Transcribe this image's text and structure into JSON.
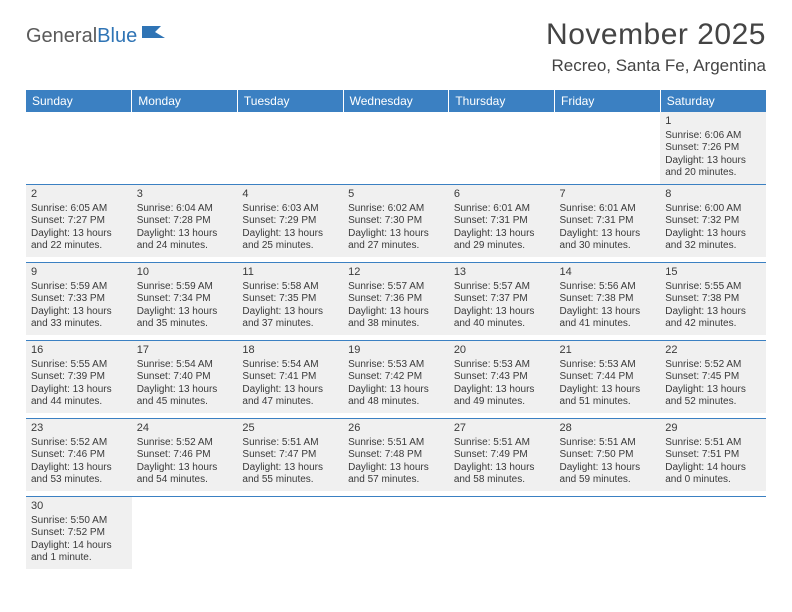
{
  "logo": {
    "text1": "General",
    "text2": "Blue"
  },
  "title": "November 2025",
  "location": "Recreo, Santa Fe, Argentina",
  "colors": {
    "header_bg": "#3b80c2",
    "cell_fill": "#f0f0f0",
    "rule": "#3b80c2",
    "text": "#3a3a3a"
  },
  "day_headers": [
    "Sunday",
    "Monday",
    "Tuesday",
    "Wednesday",
    "Thursday",
    "Friday",
    "Saturday"
  ],
  "weeks": [
    [
      null,
      null,
      null,
      null,
      null,
      null,
      {
        "n": "1",
        "sr": "Sunrise: 6:06 AM",
        "ss": "Sunset: 7:26 PM",
        "dl": "Daylight: 13 hours and 20 minutes."
      }
    ],
    [
      {
        "n": "2",
        "sr": "Sunrise: 6:05 AM",
        "ss": "Sunset: 7:27 PM",
        "dl": "Daylight: 13 hours and 22 minutes."
      },
      {
        "n": "3",
        "sr": "Sunrise: 6:04 AM",
        "ss": "Sunset: 7:28 PM",
        "dl": "Daylight: 13 hours and 24 minutes."
      },
      {
        "n": "4",
        "sr": "Sunrise: 6:03 AM",
        "ss": "Sunset: 7:29 PM",
        "dl": "Daylight: 13 hours and 25 minutes."
      },
      {
        "n": "5",
        "sr": "Sunrise: 6:02 AM",
        "ss": "Sunset: 7:30 PM",
        "dl": "Daylight: 13 hours and 27 minutes."
      },
      {
        "n": "6",
        "sr": "Sunrise: 6:01 AM",
        "ss": "Sunset: 7:31 PM",
        "dl": "Daylight: 13 hours and 29 minutes."
      },
      {
        "n": "7",
        "sr": "Sunrise: 6:01 AM",
        "ss": "Sunset: 7:31 PM",
        "dl": "Daylight: 13 hours and 30 minutes."
      },
      {
        "n": "8",
        "sr": "Sunrise: 6:00 AM",
        "ss": "Sunset: 7:32 PM",
        "dl": "Daylight: 13 hours and 32 minutes."
      }
    ],
    [
      {
        "n": "9",
        "sr": "Sunrise: 5:59 AM",
        "ss": "Sunset: 7:33 PM",
        "dl": "Daylight: 13 hours and 33 minutes."
      },
      {
        "n": "10",
        "sr": "Sunrise: 5:59 AM",
        "ss": "Sunset: 7:34 PM",
        "dl": "Daylight: 13 hours and 35 minutes."
      },
      {
        "n": "11",
        "sr": "Sunrise: 5:58 AM",
        "ss": "Sunset: 7:35 PM",
        "dl": "Daylight: 13 hours and 37 minutes."
      },
      {
        "n": "12",
        "sr": "Sunrise: 5:57 AM",
        "ss": "Sunset: 7:36 PM",
        "dl": "Daylight: 13 hours and 38 minutes."
      },
      {
        "n": "13",
        "sr": "Sunrise: 5:57 AM",
        "ss": "Sunset: 7:37 PM",
        "dl": "Daylight: 13 hours and 40 minutes."
      },
      {
        "n": "14",
        "sr": "Sunrise: 5:56 AM",
        "ss": "Sunset: 7:38 PM",
        "dl": "Daylight: 13 hours and 41 minutes."
      },
      {
        "n": "15",
        "sr": "Sunrise: 5:55 AM",
        "ss": "Sunset: 7:38 PM",
        "dl": "Daylight: 13 hours and 42 minutes."
      }
    ],
    [
      {
        "n": "16",
        "sr": "Sunrise: 5:55 AM",
        "ss": "Sunset: 7:39 PM",
        "dl": "Daylight: 13 hours and 44 minutes."
      },
      {
        "n": "17",
        "sr": "Sunrise: 5:54 AM",
        "ss": "Sunset: 7:40 PM",
        "dl": "Daylight: 13 hours and 45 minutes."
      },
      {
        "n": "18",
        "sr": "Sunrise: 5:54 AM",
        "ss": "Sunset: 7:41 PM",
        "dl": "Daylight: 13 hours and 47 minutes."
      },
      {
        "n": "19",
        "sr": "Sunrise: 5:53 AM",
        "ss": "Sunset: 7:42 PM",
        "dl": "Daylight: 13 hours and 48 minutes."
      },
      {
        "n": "20",
        "sr": "Sunrise: 5:53 AM",
        "ss": "Sunset: 7:43 PM",
        "dl": "Daylight: 13 hours and 49 minutes."
      },
      {
        "n": "21",
        "sr": "Sunrise: 5:53 AM",
        "ss": "Sunset: 7:44 PM",
        "dl": "Daylight: 13 hours and 51 minutes."
      },
      {
        "n": "22",
        "sr": "Sunrise: 5:52 AM",
        "ss": "Sunset: 7:45 PM",
        "dl": "Daylight: 13 hours and 52 minutes."
      }
    ],
    [
      {
        "n": "23",
        "sr": "Sunrise: 5:52 AM",
        "ss": "Sunset: 7:46 PM",
        "dl": "Daylight: 13 hours and 53 minutes."
      },
      {
        "n": "24",
        "sr": "Sunrise: 5:52 AM",
        "ss": "Sunset: 7:46 PM",
        "dl": "Daylight: 13 hours and 54 minutes."
      },
      {
        "n": "25",
        "sr": "Sunrise: 5:51 AM",
        "ss": "Sunset: 7:47 PM",
        "dl": "Daylight: 13 hours and 55 minutes."
      },
      {
        "n": "26",
        "sr": "Sunrise: 5:51 AM",
        "ss": "Sunset: 7:48 PM",
        "dl": "Daylight: 13 hours and 57 minutes."
      },
      {
        "n": "27",
        "sr": "Sunrise: 5:51 AM",
        "ss": "Sunset: 7:49 PM",
        "dl": "Daylight: 13 hours and 58 minutes."
      },
      {
        "n": "28",
        "sr": "Sunrise: 5:51 AM",
        "ss": "Sunset: 7:50 PM",
        "dl": "Daylight: 13 hours and 59 minutes."
      },
      {
        "n": "29",
        "sr": "Sunrise: 5:51 AM",
        "ss": "Sunset: 7:51 PM",
        "dl": "Daylight: 14 hours and 0 minutes."
      }
    ],
    [
      {
        "n": "30",
        "sr": "Sunrise: 5:50 AM",
        "ss": "Sunset: 7:52 PM",
        "dl": "Daylight: 14 hours and 1 minute."
      },
      null,
      null,
      null,
      null,
      null,
      null
    ]
  ]
}
